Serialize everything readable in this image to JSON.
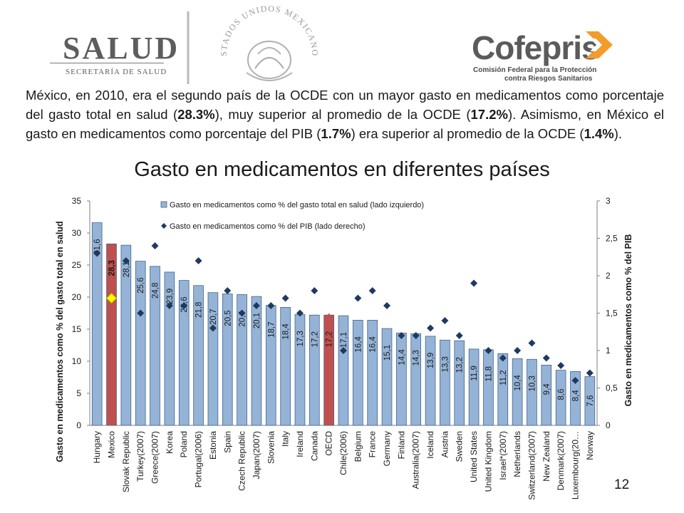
{
  "header": {
    "left_logo_title": "SALUD",
    "left_logo_subtitle": "SECRETARÍA DE SALUD",
    "seal_text": "ESTADOS UNIDOS MEXICANOS",
    "right_logo_title": "Cofepris",
    "right_logo_subtitle_1": "Comisión Federal para la Protección",
    "right_logo_subtitle_2": "contra Riesgos Sanitarios"
  },
  "intro": {
    "t1": "México, en 2010, era el segundo país de la OCDE con un mayor gasto en medicamentos como porcentaje del gasto total en salud (",
    "b1": "28.3%",
    "t2": "), muy superior al promedio de la OCDE (",
    "b2": "17.2%",
    "t3": "). Asimismo, en México el gasto en medicamentos como porcentaje del PIB (",
    "b3": "1.7%",
    "t4": ") era superior al promedio de la OCDE (",
    "b4": "1.4%",
    "t5": ")."
  },
  "page_number": "12",
  "colors": {
    "bar_default": "#95b3d7",
    "bar_highlight": "#c0504d",
    "marker_default": "#1f3a5f",
    "marker_mexico": "#ffff00",
    "marker_oecd": "#c0504d"
  },
  "chart_data": {
    "type": "bar",
    "title": "Gasto en medicamentos en diferentes países",
    "categories": [
      "Hungary",
      "Mexico",
      "Slovak Republic",
      "Turkey(2007)",
      "Greece(2007)",
      "Korea",
      "Poland",
      "Portugal(2006)",
      "Estonia",
      "Spain",
      "Czech Republic",
      "Japan(2007)",
      "Slovenia",
      "Italy",
      "Ireland",
      "Canada",
      "OECD",
      "Chile(2006)",
      "Belgium",
      "France",
      "Germany",
      "Finland",
      "Australia(2007)",
      "Iceland",
      "Austria",
      "Sweden",
      "United States",
      "United Kingdom",
      "Israel*(2007)",
      "Netherlands",
      "Switzerland(2007)",
      "New Zealand",
      "Denmark(2007)",
      "Luxembourg(20…",
      "Norway"
    ],
    "series": [
      {
        "name": "Gasto en medicamentos como % del gasto total en salud (lado izquierdo)",
        "axis": "left",
        "kind": "bar",
        "values": [
          31.6,
          28.3,
          28.1,
          25.6,
          24.8,
          23.9,
          22.6,
          21.8,
          20.7,
          20.5,
          20.4,
          20.1,
          18.7,
          18.4,
          17.3,
          17.2,
          17.2,
          17.1,
          16.4,
          16.4,
          15.1,
          14.4,
          14.3,
          13.9,
          13.3,
          13.2,
          11.9,
          11.8,
          11.2,
          10.4,
          10.3,
          9.4,
          8.6,
          8.4,
          7.6
        ],
        "labels": [
          "31,6",
          "28,3",
          "28,1",
          "25,6",
          "24,8",
          "23,9",
          "22,6",
          "21,8",
          "20,7",
          "20,5",
          "20,4",
          "20,1",
          "18,7",
          "18,4",
          "17,3",
          "17,2",
          "17,2",
          "17,1",
          "16,4",
          "16,4",
          "15,1",
          "14,4",
          "14,3",
          "13,9",
          "13,3",
          "13,2",
          "11,9",
          "11,8",
          "11,2",
          "10,4",
          "10,3",
          "9,4",
          "8,6",
          "8,4",
          "7,6"
        ]
      },
      {
        "name": "Gasto en medicamentos como % del PIB (lado derecho)",
        "axis": "right",
        "kind": "marker",
        "values": [
          2.3,
          1.7,
          2.2,
          1.5,
          2.4,
          1.6,
          1.6,
          2.2,
          1.3,
          1.8,
          1.5,
          1.6,
          1.6,
          1.7,
          1.5,
          1.8,
          1.45,
          1.0,
          1.7,
          1.8,
          1.6,
          1.2,
          1.2,
          1.3,
          1.4,
          1.2,
          1.9,
          1.0,
          0.9,
          1.0,
          1.1,
          0.9,
          0.8,
          0.6,
          0.7
        ]
      }
    ],
    "highlight_categories": [
      "Mexico",
      "OECD"
    ],
    "ylabel": "Gasto en medicamentos como % del gasto total en salud",
    "ylabel_right": "Gasto en medicamentos como % del PIB",
    "ylim": [
      0,
      35
    ],
    "ylim_right": [
      0,
      3
    ],
    "yticks": [
      "0",
      "5",
      "10",
      "15",
      "20",
      "25",
      "30",
      "35"
    ],
    "yticks_right": [
      "0",
      "0,5",
      "1",
      "1,5",
      "2",
      "2,5",
      "3"
    ],
    "legend_position": "top",
    "grid": false
  }
}
